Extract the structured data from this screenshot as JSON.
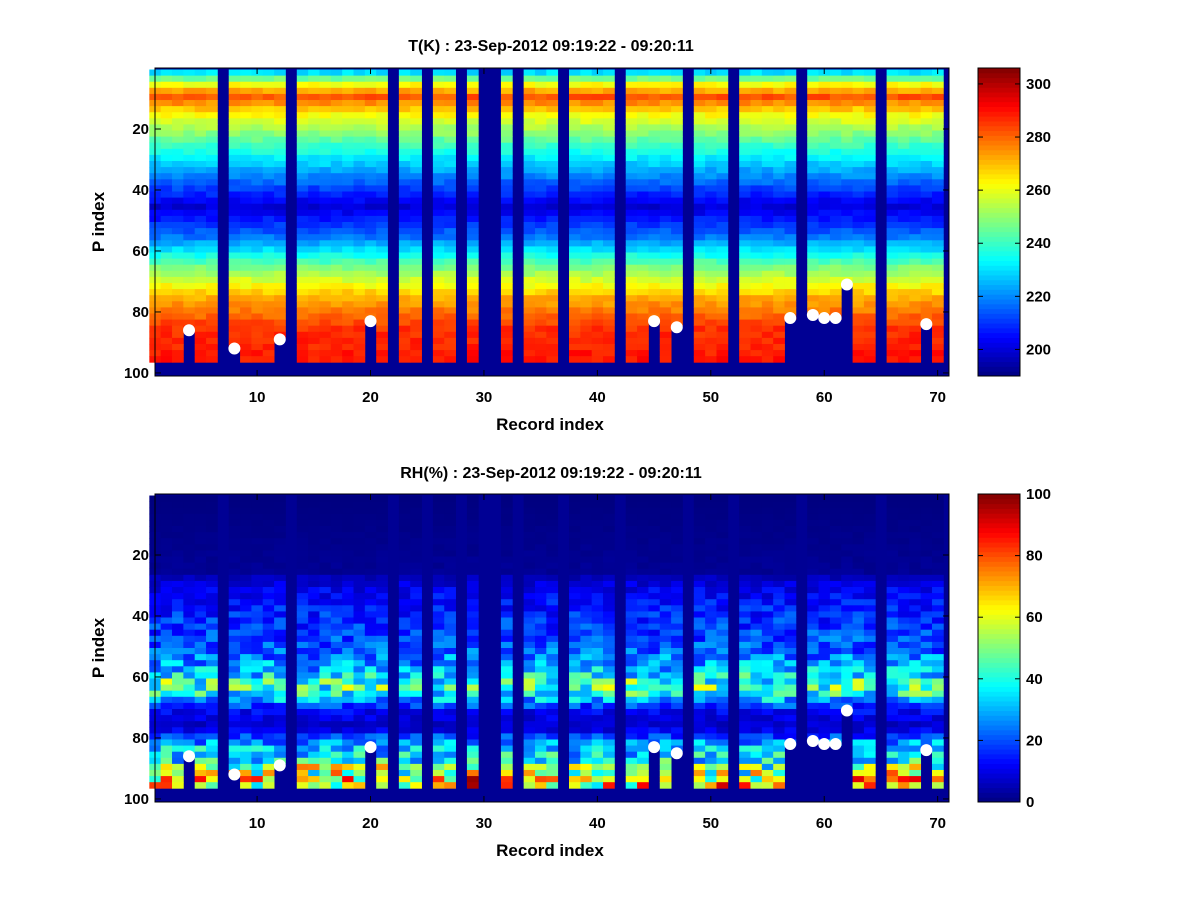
{
  "chart_data": [
    {
      "type": "heatmap",
      "title": "T(K) : 23-Sep-2012 09:19:22 - 09:20:11",
      "xlabel": "Record index",
      "ylabel": "P index",
      "xlim": [
        1,
        71
      ],
      "ylim": [
        0,
        101
      ],
      "x_ticks": [
        "10",
        "20",
        "30",
        "40",
        "50",
        "60",
        "70"
      ],
      "y_ticks": [
        "20",
        "40",
        "60",
        "80",
        "100"
      ],
      "colorbar": {
        "min": 190,
        "max": 306,
        "ticks": [
          "200",
          "220",
          "240",
          "260",
          "280",
          "300"
        ]
      },
      "colormap": "jet",
      "missing_records": [
        7,
        13,
        22,
        25,
        28,
        30,
        31,
        33,
        37,
        42,
        48,
        52,
        58,
        65
      ],
      "profile_columns_upper_pressure_start": 1,
      "surface_markers": [
        {
          "x": 4,
          "y": 86
        },
        {
          "x": 8,
          "y": 92
        },
        {
          "x": 12,
          "y": 89
        },
        {
          "x": 20,
          "y": 83
        },
        {
          "x": 45,
          "y": 83
        },
        {
          "x": 47,
          "y": 85
        },
        {
          "x": 57,
          "y": 82
        },
        {
          "x": 59,
          "y": 81
        },
        {
          "x": 60,
          "y": 82
        },
        {
          "x": 61,
          "y": 82
        },
        {
          "x": 62,
          "y": 71
        },
        {
          "x": 69,
          "y": 84
        }
      ],
      "profile_temperature_K": {
        "p_index": [
          1,
          5,
          9,
          15,
          25,
          35,
          45,
          55,
          65,
          75,
          85,
          97
        ],
        "value": [
          230,
          262,
          282,
          262,
          240,
          220,
          200,
          218,
          248,
          272,
          286,
          290
        ]
      }
    },
    {
      "type": "heatmap",
      "title": "RH(%) : 23-Sep-2012 09:19:22 - 09:20:11",
      "xlabel": "Record index",
      "ylabel": "P index",
      "xlim": [
        1,
        71
      ],
      "ylim": [
        0,
        101
      ],
      "x_ticks": [
        "10",
        "20",
        "30",
        "40",
        "50",
        "60",
        "70"
      ],
      "y_ticks": [
        "20",
        "40",
        "60",
        "80",
        "100"
      ],
      "colorbar": {
        "min": 0,
        "max": 100,
        "ticks": [
          "0",
          "20",
          "40",
          "60",
          "80",
          "100"
        ]
      },
      "colormap": "jet",
      "missing_records": [
        7,
        13,
        22,
        25,
        28,
        30,
        31,
        33,
        37,
        42,
        48,
        52,
        58,
        65
      ],
      "surface_markers": [
        {
          "x": 4,
          "y": 86
        },
        {
          "x": 8,
          "y": 92
        },
        {
          "x": 12,
          "y": 89
        },
        {
          "x": 20,
          "y": 83
        },
        {
          "x": 45,
          "y": 83
        },
        {
          "x": 47,
          "y": 85
        },
        {
          "x": 57,
          "y": 82
        },
        {
          "x": 59,
          "y": 81
        },
        {
          "x": 60,
          "y": 82
        },
        {
          "x": 61,
          "y": 82
        },
        {
          "x": 62,
          "y": 71
        },
        {
          "x": 69,
          "y": 84
        }
      ],
      "profile_rh_percent": {
        "p_index": [
          1,
          25,
          30,
          40,
          50,
          58,
          62,
          66,
          70,
          76,
          82,
          90,
          97
        ],
        "value": [
          0,
          2,
          10,
          16,
          20,
          30,
          45,
          35,
          12,
          6,
          30,
          38,
          50
        ]
      }
    }
  ]
}
